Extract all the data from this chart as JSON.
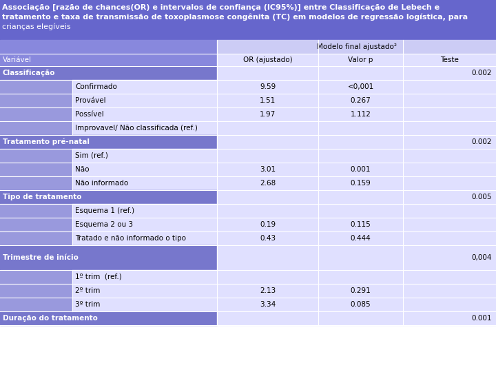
{
  "title_lines": [
    "Associação [razão de chances(OR) e intervalos de confiança (IC95%)] entre Classificação de Lebech e",
    "tratamento e taxa de transmissão de toxoplasmose congênita (TC) em modelos de regressão logística, para",
    "crianças elegíveis"
  ],
  "title_bg": "#6666cc",
  "title_text_color": "#ffffff",
  "header1_text": "Modelo final ajustado²",
  "header1_bg": "#ccccf5",
  "header2_labels": [
    "OR (ajustado)",
    "Valor p",
    "Teste"
  ],
  "header2_bg": "#e0e0ff",
  "variavel_label": "Variável",
  "variavel_bg": "#8888dd",
  "section_bg": "#7777cc",
  "section_text": "#ffffff",
  "data_bg": "#e0e0ff",
  "data_text": "#000000",
  "indent_bg": "#9999dd",
  "border_color": "#ffffff",
  "font_size_title": 8.0,
  "font_size_header": 7.5,
  "font_size_row": 7.5,
  "rows": [
    {
      "label": "Classificação",
      "or": "",
      "valor_p": "",
      "teste": "0.002",
      "is_section": true
    },
    {
      "label": "Confirmado",
      "or": "9.59",
      "valor_p": "<0,001",
      "teste": "",
      "is_section": false
    },
    {
      "label": "Provável",
      "or": "1.51",
      "valor_p": "0.267",
      "teste": "",
      "is_section": false
    },
    {
      "label": "Possível",
      "or": "1.97",
      "valor_p": "1.112",
      "teste": "",
      "is_section": false
    },
    {
      "label": "Improvavel/ Não classificada (ref.)",
      "or": "",
      "valor_p": "",
      "teste": "",
      "is_section": false
    },
    {
      "label": "Tratamento pré-natal",
      "or": "",
      "valor_p": "",
      "teste": "0.002",
      "is_section": true
    },
    {
      "label": "Sim (ref.)",
      "or": "",
      "valor_p": "",
      "teste": "",
      "is_section": false
    },
    {
      "label": "Não",
      "or": "3.01",
      "valor_p": "0.001",
      "teste": "",
      "is_section": false
    },
    {
      "label": "Não informado",
      "or": "2.68",
      "valor_p": "0.159",
      "teste": "",
      "is_section": false
    },
    {
      "label": "Tipo de tratamento",
      "or": "",
      "valor_p": "",
      "teste": "0.005",
      "is_section": true
    },
    {
      "label": "Esquema 1 (ref.)",
      "or": "",
      "valor_p": "",
      "teste": "",
      "is_section": false
    },
    {
      "label": "Esquema 2 ou 3",
      "or": "0.19",
      "valor_p": "0.115",
      "teste": "",
      "is_section": false
    },
    {
      "label": "Tratado e não informado o tipo",
      "or": "0.43",
      "valor_p": "0.444",
      "teste": "",
      "is_section": false
    },
    {
      "label": "Trimestre de início",
      "or": "",
      "valor_p": "",
      "teste": "0,004",
      "is_section": true,
      "tall": true
    },
    {
      "label": "1º trim  (ref.)",
      "or": "",
      "valor_p": "",
      "teste": "",
      "is_section": false
    },
    {
      "label": "2º trim",
      "or": "2.13",
      "valor_p": "0.291",
      "teste": "",
      "is_section": false
    },
    {
      "label": "3º trim",
      "or": "3.34",
      "valor_p": "0.085",
      "teste": "",
      "is_section": false
    },
    {
      "label": "Duração do tratamento",
      "or": "",
      "valor_p": "",
      "teste": "0.001",
      "is_section": true
    }
  ]
}
